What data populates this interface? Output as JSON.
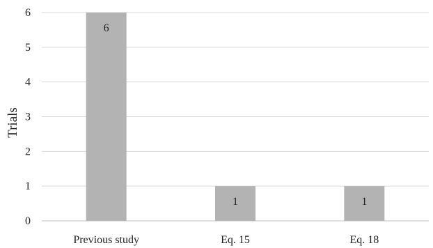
{
  "chart_data": {
    "type": "bar",
    "categories": [
      "Previous study",
      "Eq. 15",
      "Eq. 18"
    ],
    "values": [
      6,
      1,
      1
    ],
    "data_labels": [
      "6",
      "1",
      "1"
    ],
    "title": "",
    "xlabel": "",
    "ylabel": "Trials",
    "ylim": [
      0,
      6
    ],
    "yticks": [
      "0",
      "1",
      "2",
      "3",
      "4",
      "5",
      "6"
    ],
    "grid": true,
    "legend": "none",
    "colors": {
      "bar": "#b3b3b3",
      "grid": "#d9d9d9",
      "axis": "#bfbfbf",
      "text": "#222222"
    }
  }
}
